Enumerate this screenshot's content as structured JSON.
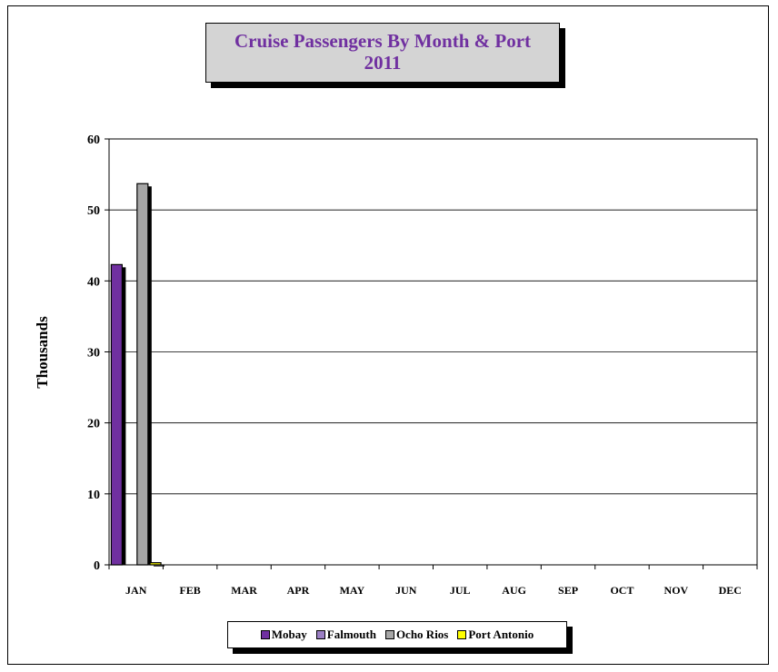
{
  "chart_data": {
    "type": "bar",
    "title_lines": [
      "Cruise Passengers By Month & Port",
      "2011"
    ],
    "ylabel": "Thousands",
    "xlabel": "",
    "ylim": [
      0,
      60
    ],
    "yticks": [
      0,
      10,
      20,
      30,
      40,
      50,
      60
    ],
    "categories": [
      "JAN",
      "FEB",
      "MAR",
      "APR",
      "MAY",
      "JUN",
      "JUL",
      "AUG",
      "SEP",
      "OCT",
      "NOV",
      "DEC"
    ],
    "series": [
      {
        "name": "Mobay",
        "color": "#7030a0",
        "values": [
          42.3,
          0,
          0,
          0,
          0,
          0,
          0,
          0,
          0,
          0,
          0,
          0
        ]
      },
      {
        "name": "Falmouth",
        "color": "#9b7fc4",
        "values": [
          0,
          0,
          0,
          0,
          0,
          0,
          0,
          0,
          0,
          0,
          0,
          0
        ]
      },
      {
        "name": "Ocho Rios",
        "color": "#a6a6a6",
        "values": [
          53.7,
          0,
          0,
          0,
          0,
          0,
          0,
          0,
          0,
          0,
          0,
          0
        ]
      },
      {
        "name": "Port Antonio",
        "color": "#ffff00",
        "values": [
          0.3,
          0,
          0,
          0,
          0,
          0,
          0,
          0,
          0,
          0,
          0,
          0
        ]
      }
    ],
    "grid": true,
    "legend_position": "bottom"
  }
}
